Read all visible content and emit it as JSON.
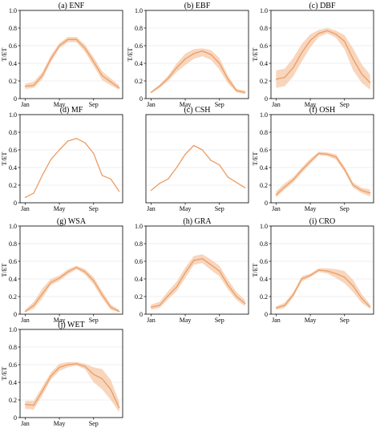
{
  "figure": {
    "band_color": "#f6c8a8",
    "line_color": "#ec9c62",
    "grid_color": "#e0e0e0"
  },
  "chart_data": [
    {
      "type": "line",
      "title": "(a) ENF",
      "ylabel": "T/ET",
      "x": [
        1,
        2,
        3,
        4,
        5,
        6,
        7,
        8,
        9,
        10,
        11,
        12
      ],
      "x_ticks": [
        {
          "x": 1,
          "label": "Jan"
        },
        {
          "x": 5,
          "label": "May"
        },
        {
          "x": 9,
          "label": "Sep"
        }
      ],
      "ylim": [
        0,
        1.0
      ],
      "y_ticks": [
        "0",
        "0.2",
        "0.4",
        "0.6",
        "0.8",
        "1.0"
      ],
      "values": [
        0.14,
        0.15,
        0.26,
        0.45,
        0.6,
        0.67,
        0.67,
        0.57,
        0.42,
        0.26,
        0.19,
        0.12
      ],
      "lower": [
        0.11,
        0.12,
        0.22,
        0.41,
        0.57,
        0.64,
        0.64,
        0.53,
        0.37,
        0.21,
        0.15,
        0.1
      ],
      "upper": [
        0.17,
        0.19,
        0.3,
        0.49,
        0.63,
        0.7,
        0.7,
        0.61,
        0.47,
        0.31,
        0.23,
        0.15
      ]
    },
    {
      "type": "line",
      "title": "(b) EBF",
      "ylabel": "T/ET",
      "x": [
        1,
        2,
        3,
        4,
        5,
        6,
        7,
        8,
        9,
        10,
        11,
        12
      ],
      "x_ticks": [
        {
          "x": 1,
          "label": "Jan"
        },
        {
          "x": 5,
          "label": "May"
        },
        {
          "x": 9,
          "label": "Sep"
        }
      ],
      "ylim": [
        0,
        1.0
      ],
      "y_ticks": [
        "0",
        "0.2",
        "0.4",
        "0.6",
        "0.8",
        "1.0"
      ],
      "values": [
        0.07,
        0.14,
        0.23,
        0.35,
        0.45,
        0.51,
        0.54,
        0.5,
        0.4,
        0.22,
        0.09,
        0.07
      ],
      "lower": [
        0.06,
        0.12,
        0.2,
        0.3,
        0.38,
        0.45,
        0.48,
        0.44,
        0.33,
        0.17,
        0.07,
        0.05
      ],
      "upper": [
        0.08,
        0.16,
        0.26,
        0.4,
        0.51,
        0.56,
        0.57,
        0.55,
        0.46,
        0.26,
        0.11,
        0.09
      ]
    },
    {
      "type": "line",
      "title": "(c) DBF",
      "ylabel": "T/ET",
      "x": [
        1,
        2,
        3,
        4,
        5,
        6,
        7,
        8,
        9,
        10,
        11,
        12
      ],
      "x_ticks": [
        {
          "x": 1,
          "label": "Jan"
        },
        {
          "x": 5,
          "label": "May"
        },
        {
          "x": 9,
          "label": "Sep"
        }
      ],
      "ylim": [
        0,
        1.0
      ],
      "y_ticks": [
        "0",
        "0.2",
        "0.4",
        "0.6",
        "0.8",
        "1.0"
      ],
      "values": [
        0.22,
        0.24,
        0.35,
        0.52,
        0.66,
        0.74,
        0.77,
        0.73,
        0.65,
        0.45,
        0.28,
        0.18
      ],
      "lower": [
        0.12,
        0.14,
        0.25,
        0.42,
        0.58,
        0.7,
        0.74,
        0.69,
        0.56,
        0.32,
        0.18,
        0.1
      ],
      "upper": [
        0.32,
        0.34,
        0.46,
        0.62,
        0.73,
        0.78,
        0.8,
        0.77,
        0.72,
        0.57,
        0.39,
        0.27
      ]
    },
    {
      "type": "line",
      "title": "(d) MF",
      "ylabel": "T/ET",
      "x": [
        1,
        2,
        3,
        4,
        5,
        6,
        7,
        8,
        9,
        10,
        11,
        12
      ],
      "x_ticks": [
        {
          "x": 1,
          "label": "Jan"
        },
        {
          "x": 5,
          "label": "May"
        },
        {
          "x": 9,
          "label": "Sep"
        }
      ],
      "ylim": [
        0,
        1.0
      ],
      "y_ticks": [
        "0",
        "0.2",
        "0.4",
        "0.6",
        "0.8",
        "1.0"
      ],
      "values": [
        0.06,
        0.11,
        0.31,
        0.49,
        0.6,
        0.7,
        0.73,
        0.68,
        0.56,
        0.31,
        0.27,
        0.13
      ],
      "lower": null,
      "upper": null
    },
    {
      "type": "line",
      "title": "(c) CSH",
      "ylabel": "",
      "x": [
        1,
        2,
        3,
        4,
        5,
        6,
        7,
        8,
        9,
        10,
        11,
        12
      ],
      "x_ticks": [
        {
          "x": 1,
          "label": "Jan"
        },
        {
          "x": 5,
          "label": "May"
        },
        {
          "x": 9,
          "label": "Sep"
        }
      ],
      "ylim": [
        0,
        1.0
      ],
      "y_ticks": [],
      "values": [
        0.14,
        0.22,
        0.27,
        0.4,
        0.55,
        0.65,
        0.6,
        0.48,
        0.43,
        0.29,
        0.23,
        0.17
      ],
      "lower": null,
      "upper": null
    },
    {
      "type": "line",
      "title": "(f) OSH",
      "ylabel": "T/ET",
      "x": [
        1,
        2,
        3,
        4,
        5,
        6,
        7,
        8,
        9,
        10,
        11,
        12
      ],
      "x_ticks": [
        {
          "x": 1,
          "label": "Jan"
        },
        {
          "x": 5,
          "label": "May"
        },
        {
          "x": 9,
          "label": "Sep"
        }
      ],
      "ylim": [
        0,
        1.0
      ],
      "y_ticks": [
        "0",
        "0.2",
        "0.4",
        "0.6",
        "0.8",
        "1.0"
      ],
      "values": [
        0.09,
        0.18,
        0.26,
        0.37,
        0.47,
        0.56,
        0.55,
        0.52,
        0.38,
        0.2,
        0.14,
        0.11
      ],
      "lower": [
        0.06,
        0.15,
        0.23,
        0.34,
        0.44,
        0.54,
        0.53,
        0.49,
        0.35,
        0.17,
        0.11,
        0.07
      ],
      "upper": [
        0.13,
        0.22,
        0.29,
        0.4,
        0.5,
        0.58,
        0.57,
        0.55,
        0.41,
        0.23,
        0.17,
        0.15
      ]
    },
    {
      "type": "line",
      "title": "(g) WSA",
      "ylabel": "T/ET",
      "x": [
        1,
        2,
        3,
        4,
        5,
        6,
        7,
        8,
        9,
        10,
        11,
        12
      ],
      "x_ticks": [
        {
          "x": 1,
          "label": "Jan"
        },
        {
          "x": 5,
          "label": "May"
        },
        {
          "x": 9,
          "label": "Sep"
        }
      ],
      "ylim": [
        0,
        1.0
      ],
      "y_ticks": [
        "0",
        "0.2",
        "0.4",
        "0.6",
        "0.8",
        "1.0"
      ],
      "values": [
        0.03,
        0.1,
        0.23,
        0.36,
        0.41,
        0.48,
        0.53,
        0.48,
        0.38,
        0.22,
        0.08,
        0.03
      ],
      "lower": [
        0.02,
        0.06,
        0.18,
        0.33,
        0.38,
        0.45,
        0.51,
        0.45,
        0.34,
        0.18,
        0.05,
        0.02
      ],
      "upper": [
        0.05,
        0.14,
        0.29,
        0.4,
        0.44,
        0.51,
        0.55,
        0.51,
        0.42,
        0.26,
        0.11,
        0.05
      ]
    },
    {
      "type": "line",
      "title": "(h) GRA",
      "ylabel": "",
      "x": [
        1,
        2,
        3,
        4,
        5,
        6,
        7,
        8,
        9,
        10,
        11,
        12
      ],
      "x_ticks": [
        {
          "x": 1,
          "label": "Jan"
        },
        {
          "x": 5,
          "label": "May"
        },
        {
          "x": 9,
          "label": "Sep"
        }
      ],
      "ylim": [
        0,
        1.0
      ],
      "y_ticks": [
        "0",
        "0.2",
        "0.4",
        "0.6",
        "0.8",
        "1.0"
      ],
      "values": [
        0.08,
        0.1,
        0.21,
        0.31,
        0.47,
        0.61,
        0.63,
        0.56,
        0.49,
        0.33,
        0.2,
        0.12
      ],
      "lower": [
        0.05,
        0.07,
        0.17,
        0.26,
        0.41,
        0.56,
        0.58,
        0.5,
        0.43,
        0.28,
        0.16,
        0.09
      ],
      "upper": [
        0.11,
        0.14,
        0.26,
        0.37,
        0.53,
        0.66,
        0.68,
        0.62,
        0.55,
        0.39,
        0.25,
        0.16
      ]
    },
    {
      "type": "line",
      "title": "(i) CRO",
      "ylabel": "T/ET",
      "x": [
        1,
        2,
        3,
        4,
        5,
        6,
        7,
        8,
        9,
        10,
        11,
        12
      ],
      "x_ticks": [
        {
          "x": 1,
          "label": "Jan"
        },
        {
          "x": 5,
          "label": "May"
        },
        {
          "x": 9,
          "label": "Sep"
        }
      ],
      "ylim": [
        0,
        1.0
      ],
      "y_ticks": [
        "0",
        "0.2",
        "0.4",
        "0.6",
        "0.8",
        "1.0"
      ],
      "values": [
        0.07,
        0.1,
        0.22,
        0.4,
        0.44,
        0.5,
        0.49,
        0.46,
        0.42,
        0.32,
        0.18,
        0.08
      ],
      "lower": [
        0.05,
        0.07,
        0.19,
        0.37,
        0.42,
        0.48,
        0.46,
        0.41,
        0.35,
        0.25,
        0.13,
        0.06
      ],
      "upper": [
        0.09,
        0.13,
        0.25,
        0.43,
        0.46,
        0.52,
        0.52,
        0.51,
        0.49,
        0.39,
        0.23,
        0.11
      ]
    },
    {
      "type": "line",
      "title": "(j) WET",
      "ylabel": "T/ET",
      "x": [
        1,
        2,
        3,
        4,
        5,
        6,
        7,
        8,
        9,
        10,
        11,
        12
      ],
      "x_ticks": [
        {
          "x": 1,
          "label": "Jan"
        },
        {
          "x": 5,
          "label": "May"
        },
        {
          "x": 9,
          "label": "Sep"
        }
      ],
      "ylim": [
        0,
        1.0
      ],
      "y_ticks": [
        "0",
        "0.2",
        "0.4",
        "0.6",
        "0.8",
        "1.0"
      ],
      "values": [
        0.15,
        0.14,
        0.3,
        0.47,
        0.57,
        0.6,
        0.61,
        0.58,
        0.49,
        0.44,
        0.32,
        0.11
      ],
      "lower": [
        0.1,
        0.09,
        0.25,
        0.43,
        0.53,
        0.57,
        0.59,
        0.55,
        0.4,
        0.32,
        0.2,
        0.06
      ],
      "upper": [
        0.19,
        0.19,
        0.35,
        0.51,
        0.61,
        0.63,
        0.63,
        0.61,
        0.57,
        0.55,
        0.43,
        0.18
      ]
    }
  ]
}
